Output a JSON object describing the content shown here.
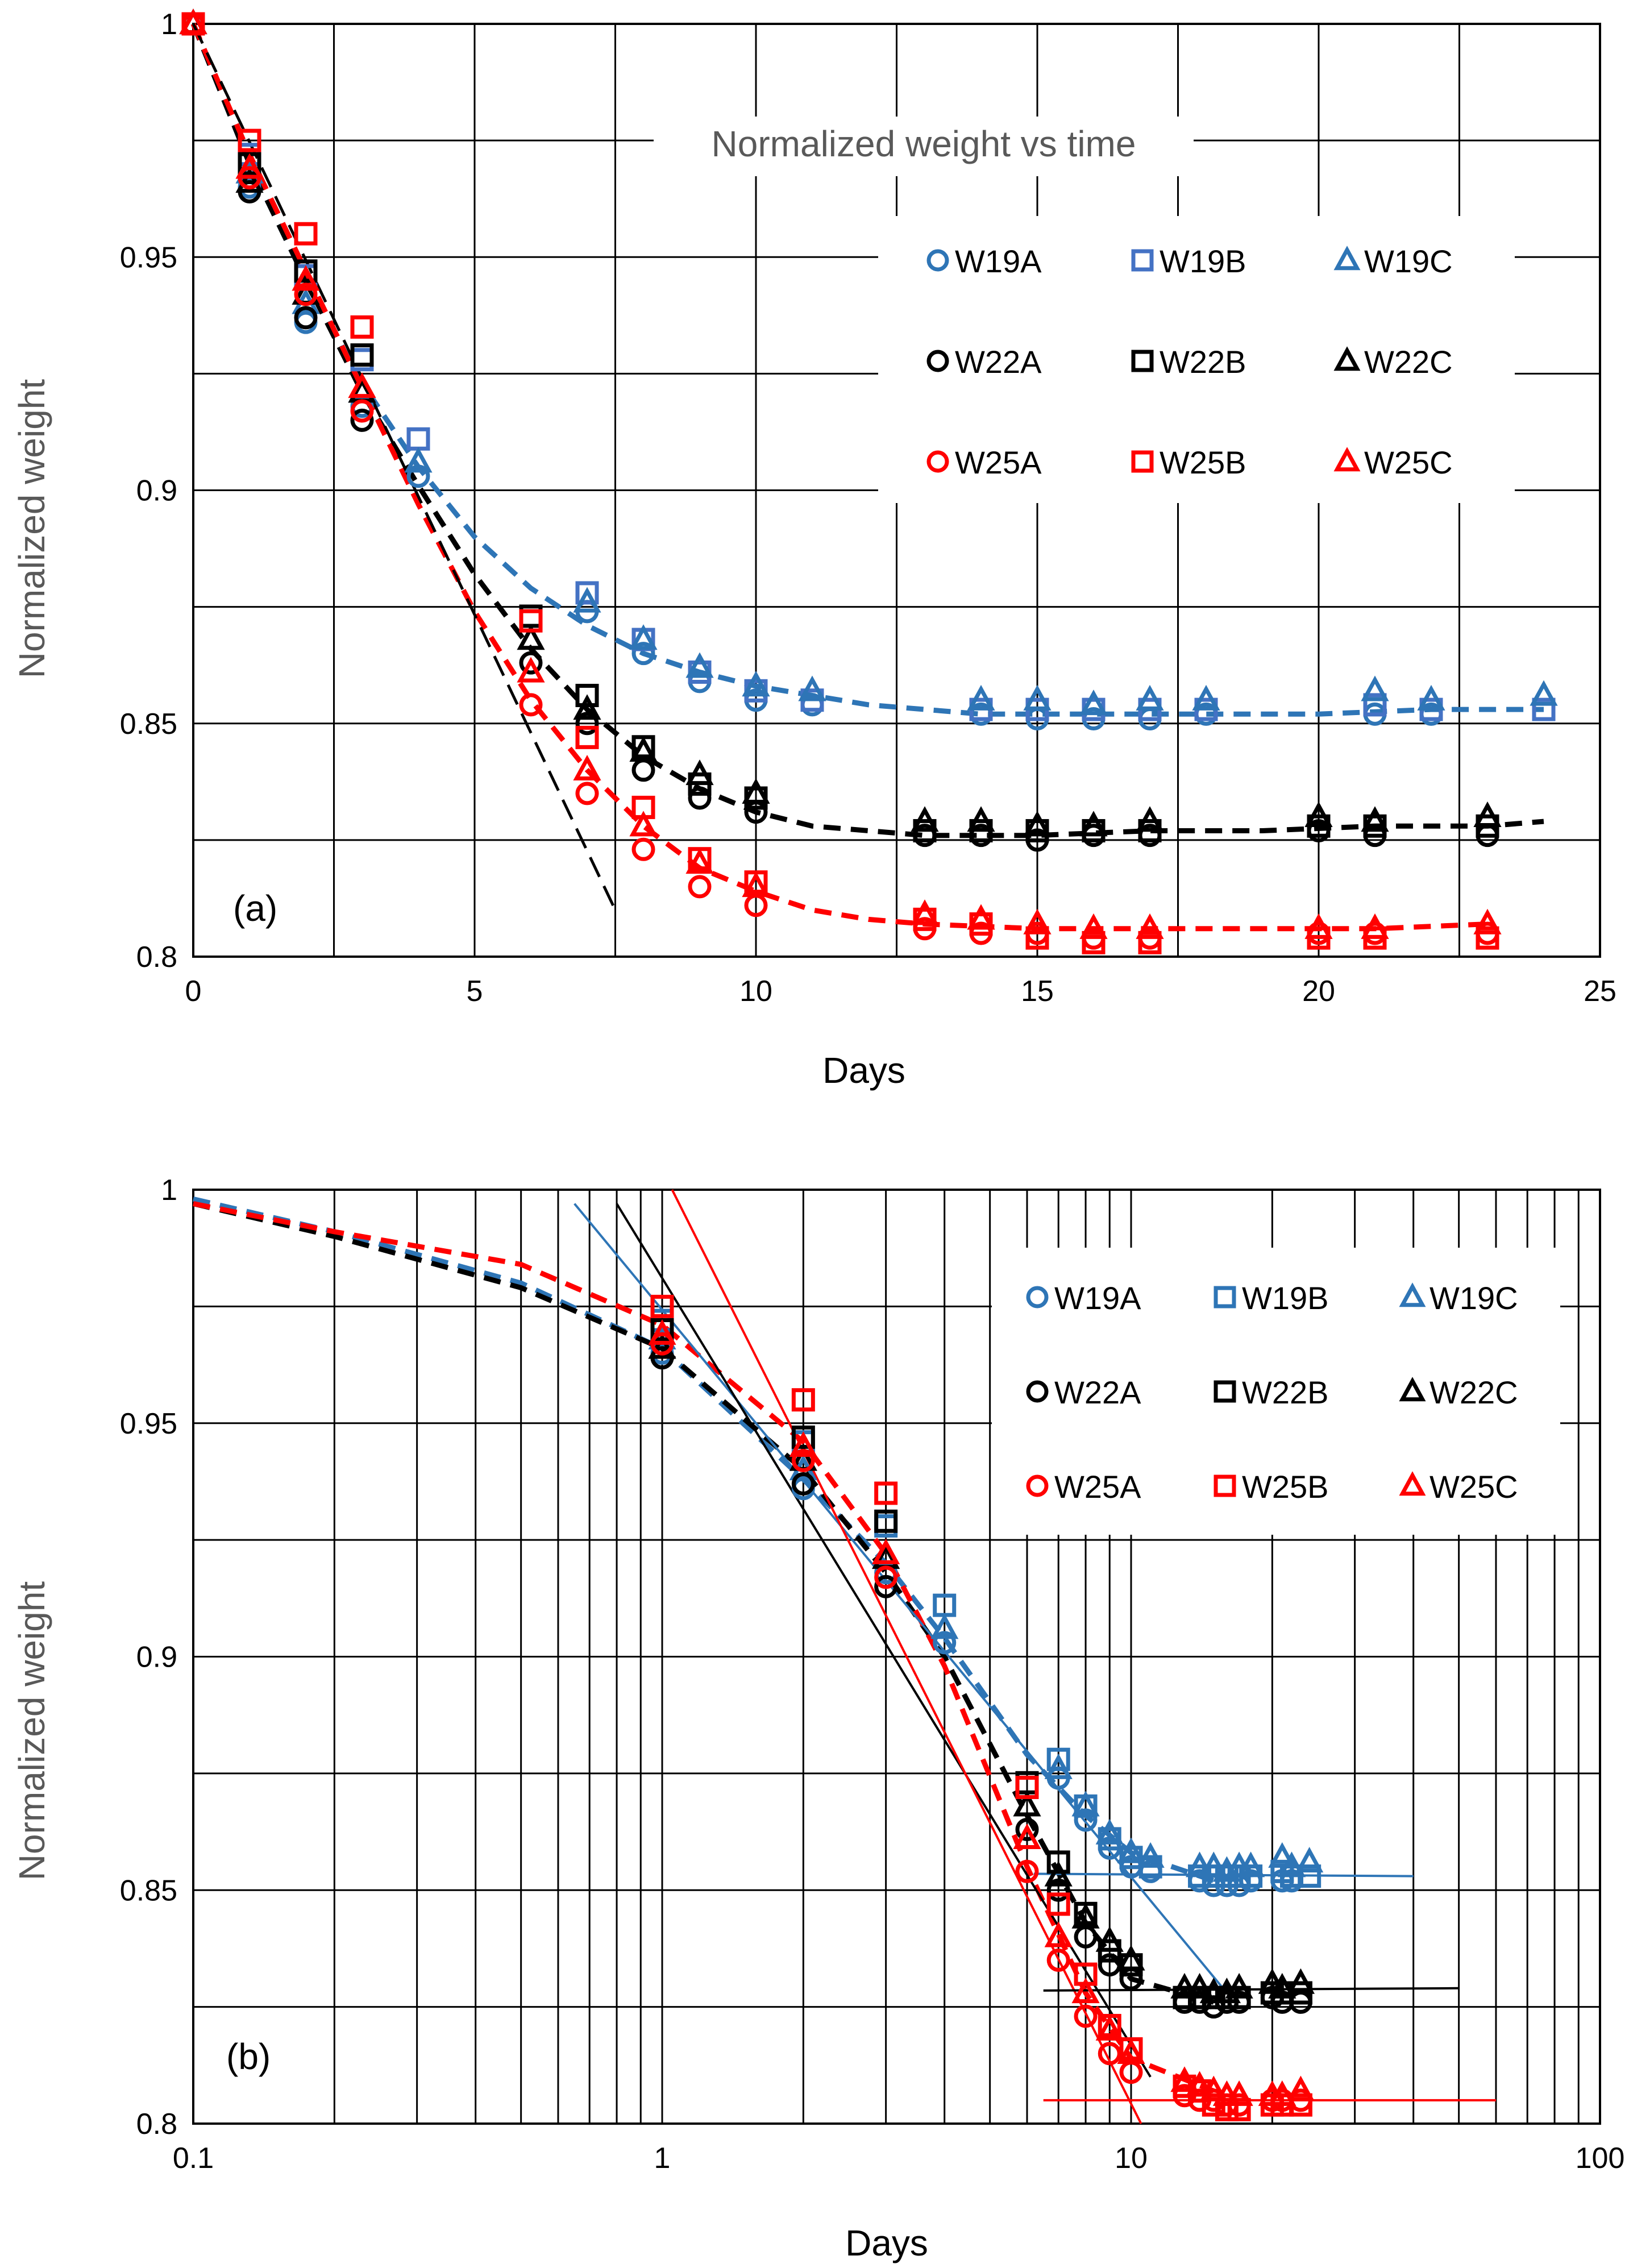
{
  "colors": {
    "W19": "#2E75B6",
    "W22": "#000000",
    "W25": "#FF0000",
    "W19B_a": "#4472C4",
    "grid": "#000000",
    "title": "#595959"
  },
  "chart_data": [
    {
      "type": "scatter",
      "id": "a",
      "panel_label": "(a)",
      "title": "Normalized weight vs time",
      "xlabel": "Days",
      "ylabel": "Normalized weight",
      "xscale": "linear",
      "xlim": [
        0,
        25
      ],
      "ylim": [
        0.8,
        1.0
      ],
      "x_ticks": [
        0,
        5,
        10,
        15,
        20,
        25
      ],
      "x_tick_labels": [
        "0",
        "5",
        "10",
        "15",
        "20",
        "25"
      ],
      "y_ticks": [
        0.8,
        0.85,
        0.9,
        0.95,
        1.0
      ],
      "y_tick_labels": [
        "0.8",
        "0.85",
        "0.9",
        "0.95",
        "1"
      ],
      "grid": true,
      "legend_position": "top-right",
      "legend": [
        "W19A",
        "W19B",
        "W19C",
        "W22A",
        "W22B",
        "W22C",
        "W25A",
        "W25B",
        "W25C"
      ],
      "series": [
        {
          "name": "W19A",
          "group": "W19",
          "marker": "circle",
          "x": [
            0,
            1,
            2,
            3,
            4,
            7,
            8,
            9,
            10,
            11,
            14,
            15,
            16,
            17,
            18,
            21,
            22
          ],
          "y": [
            1.0,
            0.965,
            0.936,
            0.918,
            0.903,
            0.874,
            0.865,
            0.859,
            0.855,
            0.854,
            0.852,
            0.851,
            0.851,
            0.851,
            0.852,
            0.852,
            0.852
          ]
        },
        {
          "name": "W19B",
          "group": "W19",
          "marker": "square",
          "x": [
            0,
            1,
            2,
            3,
            4,
            7,
            8,
            9,
            10,
            11,
            14,
            15,
            16,
            17,
            18,
            21,
            22,
            24
          ],
          "y": [
            1.0,
            0.972,
            0.946,
            0.928,
            0.911,
            0.878,
            0.868,
            0.861,
            0.857,
            0.855,
            0.853,
            0.853,
            0.853,
            0.853,
            0.853,
            0.854,
            0.853,
            0.853
          ]
        },
        {
          "name": "W19C",
          "group": "W19",
          "marker": "triangle",
          "x": [
            0,
            1,
            2,
            3,
            4,
            7,
            8,
            9,
            10,
            11,
            14,
            15,
            16,
            17,
            18,
            21,
            22,
            24
          ],
          "y": [
            1.0,
            0.968,
            0.94,
            0.921,
            0.906,
            0.876,
            0.868,
            0.862,
            0.858,
            0.857,
            0.855,
            0.855,
            0.854,
            0.855,
            0.855,
            0.857,
            0.855,
            0.856
          ]
        },
        {
          "name": "W22A",
          "group": "W22",
          "marker": "circle",
          "x": [
            0,
            1,
            2,
            3,
            6,
            7,
            8,
            9,
            10,
            13,
            14,
            15,
            16,
            17,
            20,
            21,
            23
          ],
          "y": [
            1.0,
            0.964,
            0.937,
            0.915,
            0.863,
            0.85,
            0.84,
            0.834,
            0.831,
            0.826,
            0.826,
            0.825,
            0.826,
            0.826,
            0.827,
            0.826,
            0.826
          ]
        },
        {
          "name": "W22B",
          "group": "W22",
          "marker": "square",
          "x": [
            0,
            1,
            2,
            3,
            6,
            7,
            8,
            9,
            10,
            13,
            14,
            15,
            16,
            17,
            20,
            21,
            23
          ],
          "y": [
            1.0,
            0.97,
            0.947,
            0.929,
            0.873,
            0.856,
            0.845,
            0.837,
            0.834,
            0.827,
            0.827,
            0.827,
            0.827,
            0.827,
            0.828,
            0.828,
            0.828
          ]
        },
        {
          "name": "W22C",
          "group": "W22",
          "marker": "triangle",
          "x": [
            0,
            1,
            2,
            3,
            6,
            7,
            8,
            9,
            10,
            13,
            14,
            15,
            16,
            17,
            20,
            21,
            23
          ],
          "y": [
            1.0,
            0.966,
            0.942,
            0.921,
            0.868,
            0.853,
            0.844,
            0.839,
            0.835,
            0.829,
            0.829,
            0.828,
            0.828,
            0.829,
            0.83,
            0.829,
            0.83
          ]
        },
        {
          "name": "W25A",
          "group": "W25",
          "marker": "circle",
          "x": [
            0,
            1,
            2,
            3,
            6,
            7,
            8,
            9,
            10,
            13,
            14,
            15,
            16,
            17,
            20,
            21,
            23
          ],
          "y": [
            1.0,
            0.967,
            0.942,
            0.917,
            0.854,
            0.835,
            0.823,
            0.815,
            0.811,
            0.806,
            0.805,
            0.805,
            0.804,
            0.804,
            0.805,
            0.805,
            0.805
          ]
        },
        {
          "name": "W25B",
          "group": "W25",
          "marker": "square",
          "x": [
            0,
            1,
            2,
            3,
            6,
            7,
            8,
            9,
            10,
            13,
            14,
            15,
            16,
            17,
            20,
            21,
            23
          ],
          "y": [
            1.0,
            0.975,
            0.955,
            0.935,
            0.872,
            0.847,
            0.832,
            0.821,
            0.816,
            0.808,
            0.807,
            0.804,
            0.803,
            0.803,
            0.804,
            0.804,
            0.804
          ]
        },
        {
          "name": "W25C",
          "group": "W25",
          "marker": "triangle",
          "x": [
            0,
            1,
            2,
            3,
            6,
            7,
            8,
            9,
            10,
            13,
            14,
            15,
            16,
            17,
            20,
            21,
            23
          ],
          "y": [
            1.0,
            0.969,
            0.945,
            0.922,
            0.861,
            0.84,
            0.828,
            0.82,
            0.815,
            0.809,
            0.808,
            0.807,
            0.806,
            0.806,
            0.806,
            0.806,
            0.807
          ]
        }
      ],
      "fit_curves": [
        {
          "group": "W19",
          "style": "dashed",
          "x": [
            0,
            1,
            2,
            3,
            4,
            5,
            6,
            7,
            8,
            9,
            10,
            11,
            12,
            13,
            14,
            16,
            18,
            20,
            22,
            24
          ],
          "y": [
            1.0,
            0.97,
            0.945,
            0.923,
            0.905,
            0.89,
            0.879,
            0.871,
            0.865,
            0.861,
            0.858,
            0.856,
            0.854,
            0.853,
            0.852,
            0.852,
            0.852,
            0.852,
            0.853,
            0.853
          ]
        },
        {
          "group": "W22",
          "style": "dashed",
          "x": [
            0,
            1,
            2,
            3,
            4,
            5,
            6,
            7,
            8,
            9,
            10,
            11,
            12,
            13,
            15,
            17,
            19,
            21,
            23,
            24
          ],
          "y": [
            1.0,
            0.97,
            0.945,
            0.921,
            0.901,
            0.882,
            0.866,
            0.853,
            0.843,
            0.836,
            0.831,
            0.828,
            0.827,
            0.826,
            0.826,
            0.827,
            0.827,
            0.828,
            0.828,
            0.829
          ]
        },
        {
          "group": "W25",
          "style": "dashed",
          "x": [
            0,
            1,
            2,
            3,
            4,
            5,
            6,
            7,
            8,
            9,
            10,
            11,
            12,
            13,
            15,
            17,
            19,
            21,
            23
          ],
          "y": [
            1.0,
            0.972,
            0.947,
            0.922,
            0.897,
            0.874,
            0.855,
            0.84,
            0.828,
            0.819,
            0.814,
            0.81,
            0.808,
            0.807,
            0.806,
            0.806,
            0.806,
            0.806,
            0.807
          ]
        },
        {
          "group": "W22",
          "style": "dashed-linear",
          "x": [
            0,
            7.5
          ],
          "y": [
            1.0,
            0.81
          ]
        }
      ]
    },
    {
      "type": "scatter",
      "id": "b",
      "panel_label": "(b)",
      "xlabel": "Days",
      "ylabel": "Normalized weight",
      "xscale": "log",
      "xlim": [
        0.1,
        100
      ],
      "ylim": [
        0.8,
        1.0
      ],
      "x_ticks": [
        0.1,
        1,
        10,
        100
      ],
      "x_tick_labels": [
        "0.1",
        "1",
        "10",
        "100"
      ],
      "y_ticks": [
        0.8,
        0.85,
        0.9,
        0.95,
        1.0
      ],
      "y_tick_labels": [
        "0.8",
        "0.85",
        "0.9",
        "0.95",
        "1"
      ],
      "grid": true,
      "legend_position": "top-right",
      "legend": [
        "W19A",
        "W19B",
        "W19C",
        "W22A",
        "W22B",
        "W22C",
        "W25A",
        "W25B",
        "W25C"
      ],
      "fit_curves": [
        {
          "group": "W19",
          "style": "dashed",
          "x": [
            0.1,
            0.2,
            0.5,
            1,
            2,
            3,
            4,
            6,
            8,
            10,
            15
          ],
          "y": [
            0.998,
            0.991,
            0.98,
            0.966,
            0.938,
            0.92,
            0.904,
            0.879,
            0.866,
            0.858,
            0.852
          ]
        },
        {
          "group": "W22",
          "style": "dashed",
          "x": [
            0.1,
            0.2,
            0.5,
            1,
            2,
            3,
            4,
            6,
            8,
            10,
            15
          ],
          "y": [
            0.997,
            0.99,
            0.979,
            0.966,
            0.94,
            0.918,
            0.9,
            0.866,
            0.843,
            0.831,
            0.826
          ]
        },
        {
          "group": "W25",
          "style": "dashed",
          "x": [
            0.1,
            0.2,
            0.5,
            1,
            2,
            3,
            4,
            6,
            8,
            10,
            15
          ],
          "y": [
            0.997,
            0.991,
            0.984,
            0.971,
            0.946,
            0.922,
            0.898,
            0.855,
            0.828,
            0.814,
            0.807
          ]
        },
        {
          "group": "W19",
          "style": "solid-thin",
          "x": [
            0.65,
            16
          ],
          "y": [
            0.997,
            0.828
          ]
        },
        {
          "group": "W22",
          "style": "solid-thin",
          "x": [
            0.8,
            11
          ],
          "y": [
            0.997,
            0.81
          ]
        },
        {
          "group": "W25",
          "style": "solid-thin",
          "x": [
            1.05,
            10.5
          ],
          "y": [
            1.0,
            0.8
          ]
        },
        {
          "group": "W19",
          "style": "solid-thin",
          "x": [
            6.2,
            40
          ],
          "y": [
            0.8535,
            0.853
          ]
        },
        {
          "group": "W22",
          "style": "solid-thin",
          "x": [
            6.5,
            50
          ],
          "y": [
            0.8285,
            0.829
          ]
        },
        {
          "group": "W25",
          "style": "solid-thin",
          "x": [
            6.5,
            60
          ],
          "y": [
            0.805,
            0.805
          ]
        }
      ]
    }
  ]
}
